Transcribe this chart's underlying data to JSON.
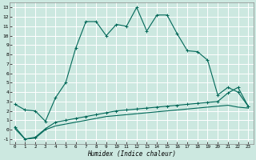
{
  "xlabel": "Humidex (Indice chaleur)",
  "background_color": "#cce8e0",
  "grid_color": "#ffffff",
  "line_color": "#006858",
  "xlim": [
    -0.5,
    23.5
  ],
  "ylim": [
    -1.5,
    13.5
  ],
  "xticks": [
    0,
    1,
    2,
    3,
    4,
    5,
    6,
    7,
    8,
    9,
    10,
    11,
    12,
    13,
    14,
    15,
    16,
    17,
    18,
    19,
    20,
    21,
    22,
    23
  ],
  "yticks": [
    -1,
    0,
    1,
    2,
    3,
    4,
    5,
    6,
    7,
    8,
    9,
    10,
    11,
    12,
    13
  ],
  "curve1_x": [
    0,
    1,
    2,
    3,
    4,
    5,
    6,
    7,
    8,
    9,
    10,
    11,
    12,
    13,
    14,
    15,
    16,
    17,
    18,
    19,
    20,
    21,
    22,
    23
  ],
  "curve1_y": [
    2.7,
    2.1,
    2.0,
    0.9,
    3.4,
    5.0,
    8.7,
    11.5,
    11.5,
    10.0,
    11.2,
    11.0,
    13.0,
    10.5,
    12.2,
    12.2,
    10.2,
    8.4,
    8.3,
    7.4,
    3.7,
    4.5,
    4.0,
    2.5
  ],
  "curve2_x": [
    0,
    1,
    2,
    3,
    4,
    5,
    6,
    7,
    8,
    9,
    10,
    11,
    12,
    13,
    14,
    15,
    16,
    17,
    18,
    19,
    20,
    21,
    22,
    23
  ],
  "curve2_y": [
    0.3,
    -1.0,
    -0.8,
    0.1,
    0.8,
    1.0,
    1.2,
    1.4,
    1.6,
    1.8,
    2.0,
    2.1,
    2.2,
    2.3,
    2.4,
    2.5,
    2.6,
    2.7,
    2.8,
    2.9,
    3.0,
    3.9,
    4.5,
    2.5
  ],
  "curve3_x": [
    0,
    1,
    2,
    3,
    4,
    5,
    6,
    7,
    8,
    9,
    10,
    11,
    12,
    13,
    14,
    15,
    16,
    17,
    18,
    19,
    20,
    21,
    22,
    23
  ],
  "curve3_y": [
    0.1,
    -1.0,
    -0.9,
    0.0,
    0.4,
    0.6,
    0.8,
    1.0,
    1.2,
    1.4,
    1.5,
    1.6,
    1.7,
    1.8,
    1.9,
    2.0,
    2.1,
    2.2,
    2.3,
    2.4,
    2.5,
    2.6,
    2.4,
    2.3
  ]
}
